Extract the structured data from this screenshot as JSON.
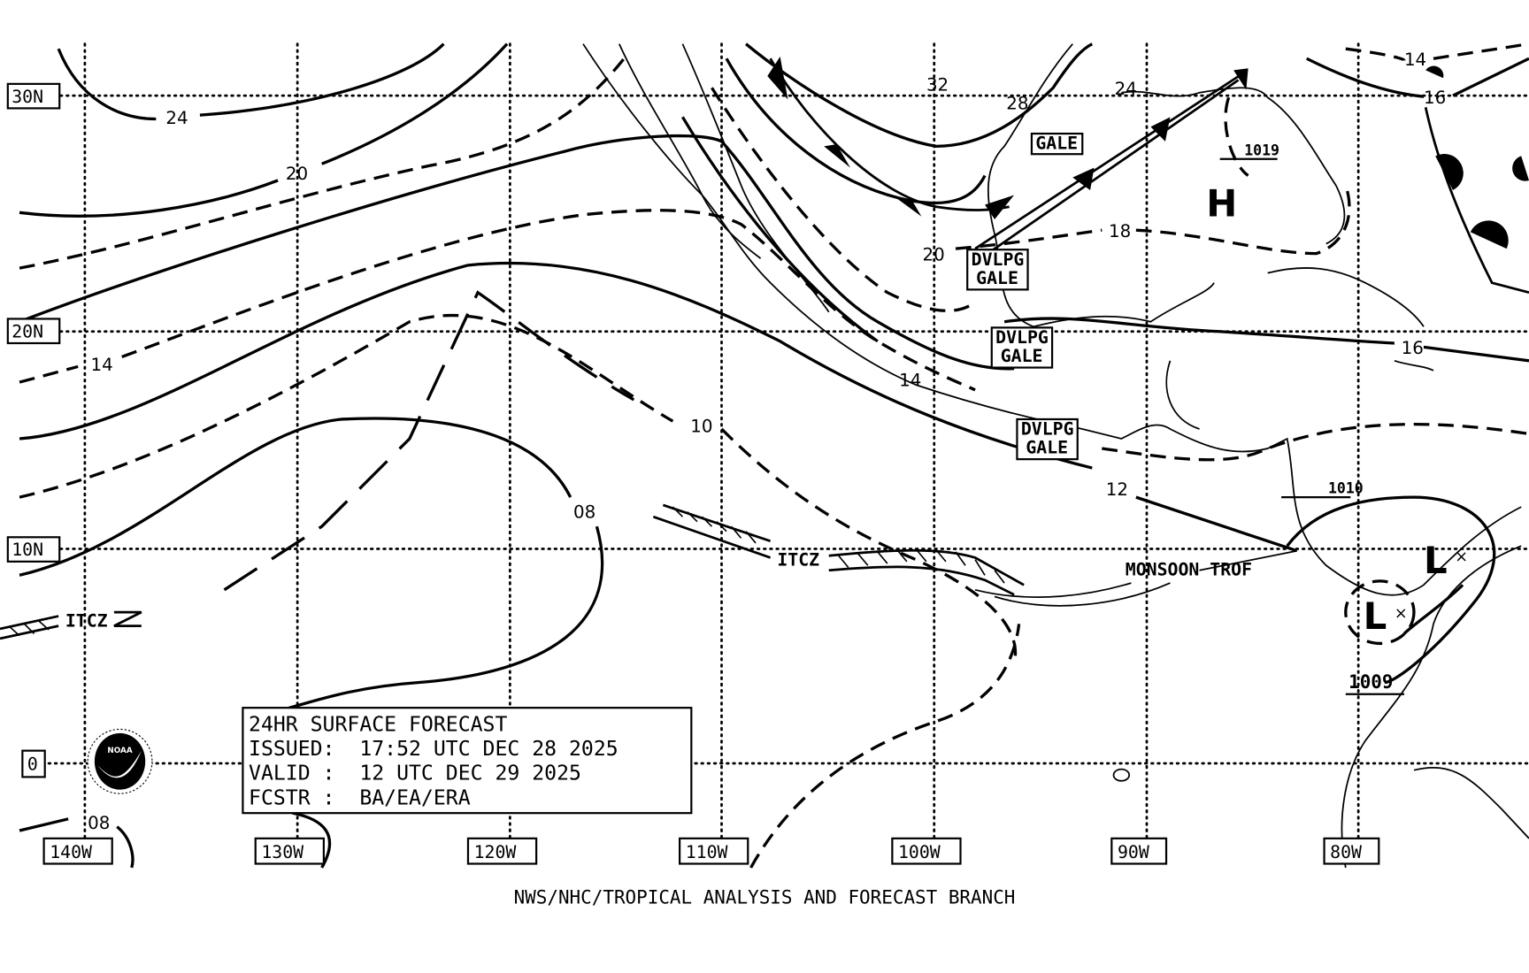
{
  "map": {
    "latitude_labels": [
      "30N",
      "20N",
      "10N",
      "0"
    ],
    "longitude_labels": [
      "140W",
      "130W",
      "120W",
      "110W",
      "100W",
      "90W",
      "80W"
    ],
    "isobar_labels": [
      "24",
      "20",
      "14",
      "08",
      "10",
      "14",
      "12",
      "20",
      "28",
      "32",
      "24",
      "18",
      "14",
      "16",
      "16",
      "08"
    ],
    "pressure_centers": [
      {
        "type": "H",
        "value": "1019"
      },
      {
        "type": "L",
        "value": "1010"
      },
      {
        "type": "L",
        "value": "1009"
      }
    ],
    "warnings": {
      "gale": "GALE",
      "developing_gale_line1": "DVLPG",
      "developing_gale_line2": "GALE"
    },
    "features": {
      "itcz": "ITCZ",
      "monsoon_trough": "MONSOON TROF"
    },
    "colors": {
      "ink": "#000000",
      "background": "#ffffff"
    }
  },
  "info_box": {
    "title": "24HR SURFACE FORECAST",
    "issued": "ISSUED:  17:52 UTC DEC 28 2025",
    "valid": "VALID :  12 UTC DEC 29 2025",
    "forecasters": "FCSTR :  BA/EA/ERA"
  },
  "logo": {
    "text": "NOAA"
  },
  "footer": "NWS/NHC/TROPICAL ANALYSIS AND FORECAST BRANCH"
}
